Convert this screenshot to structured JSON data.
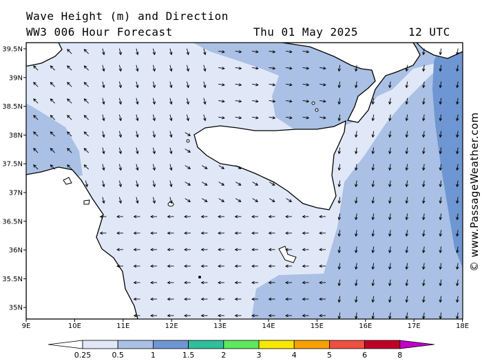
{
  "header": {
    "title": "Wave Height (m) and Direction",
    "model": "WW3 006 Hour Forecast",
    "date": "Thu 01 May 2025",
    "time": "12 UTC"
  },
  "axes": {
    "lat_labels": [
      "39.5N",
      "39N",
      "38.5N",
      "38N",
      "37.5N",
      "37N",
      "36.5N",
      "36N",
      "35.5N",
      "35N"
    ],
    "lon_labels": [
      "9E",
      "10E",
      "11E",
      "12E",
      "13E",
      "14E",
      "15E",
      "16E",
      "17E",
      "18E"
    ]
  },
  "copyright": "© www.PassageWeather.com",
  "colorbar": {
    "levels": [
      "0.25",
      "0.5",
      "1",
      "1.5",
      "2",
      "3",
      "4",
      "5",
      "6",
      "8"
    ],
    "colors": [
      "#e0e8f8",
      "#aac0e4",
      "#6e96d2",
      "#2fbf9a",
      "#5ee85e",
      "#f8e800",
      "#f8a000",
      "#f05040",
      "#c00028",
      "#c000c8"
    ],
    "low_color": "#ffffff"
  },
  "colors": {
    "land": "#ffffff",
    "coast": "#000000",
    "arrow": "#000000"
  }
}
